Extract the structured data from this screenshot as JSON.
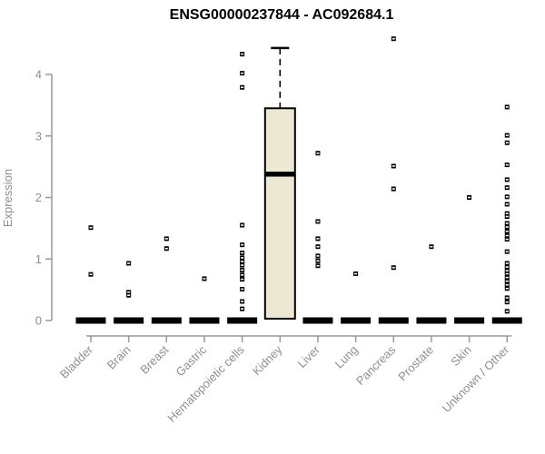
{
  "chart_data": {
    "type": "boxplot",
    "title": "ENSG00000237844 - AC092684.1",
    "ylabel": "Expression",
    "xlabel": "",
    "ylim": [
      0,
      4.7
    ],
    "yticks": [
      0,
      1,
      2,
      3,
      4
    ],
    "grid": false,
    "legend": false,
    "categories": [
      "Bladder",
      "Brain",
      "Breast",
      "Gastric",
      "Hematopoietic cells",
      "Kidney",
      "Liver",
      "Lung",
      "Pancreas",
      "Prostate",
      "Skin",
      "Unknown / Other"
    ],
    "boxes": [
      {
        "category": "Bladder",
        "median": 0,
        "q1": 0,
        "q3": 0,
        "whisker_low": 0,
        "whisker_high": 0,
        "outliers": [
          1.51,
          0.75
        ]
      },
      {
        "category": "Brain",
        "median": 0,
        "q1": 0,
        "q3": 0,
        "whisker_low": 0,
        "whisker_high": 0,
        "outliers": [
          0.93,
          0.46,
          0.41
        ]
      },
      {
        "category": "Breast",
        "median": 0,
        "q1": 0,
        "q3": 0,
        "whisker_low": 0,
        "whisker_high": 0,
        "outliers": [
          1.33,
          1.17
        ]
      },
      {
        "category": "Gastric",
        "median": 0,
        "q1": 0,
        "q3": 0,
        "whisker_low": 0,
        "whisker_high": 0,
        "outliers": [
          0.68
        ]
      },
      {
        "category": "Hematopoietic cells",
        "median": 0,
        "q1": 0,
        "q3": 0,
        "whisker_low": 0,
        "whisker_high": 0,
        "outliers": [
          4.33,
          4.02,
          3.79,
          1.55,
          1.23,
          1.1,
          1.02,
          0.96,
          0.9,
          0.82,
          0.74,
          0.67,
          0.51,
          0.31,
          0.19
        ]
      },
      {
        "category": "Kidney",
        "median": 2.38,
        "q1": 0.03,
        "q3": 3.45,
        "whisker_low": 0.03,
        "whisker_high": 4.43,
        "outliers": []
      },
      {
        "category": "Liver",
        "median": 0,
        "q1": 0,
        "q3": 0,
        "whisker_low": 0,
        "whisker_high": 0,
        "outliers": [
          2.72,
          1.61,
          1.33,
          1.2,
          1.05,
          0.97,
          0.89
        ]
      },
      {
        "category": "Lung",
        "median": 0,
        "q1": 0,
        "q3": 0,
        "whisker_low": 0,
        "whisker_high": 0,
        "outliers": [
          0.76
        ]
      },
      {
        "category": "Pancreas",
        "median": 0,
        "q1": 0,
        "q3": 0,
        "whisker_low": 0,
        "whisker_high": 0,
        "outliers": [
          4.58,
          2.51,
          2.14,
          0.86
        ]
      },
      {
        "category": "Prostate",
        "median": 0,
        "q1": 0,
        "q3": 0,
        "whisker_low": 0,
        "whisker_high": 0,
        "outliers": [
          1.2
        ]
      },
      {
        "category": "Skin",
        "median": 0,
        "q1": 0,
        "q3": 0,
        "whisker_low": 0,
        "whisker_high": 0,
        "outliers": [
          2.0
        ]
      },
      {
        "category": "Unknown / Other",
        "median": 0,
        "q1": 0,
        "q3": 0,
        "whisker_low": 0,
        "whisker_high": 0,
        "outliers": [
          3.47,
          3.01,
          2.89,
          2.53,
          2.29,
          2.16,
          2.01,
          1.89,
          1.74,
          1.69,
          1.58,
          1.52,
          1.45,
          1.38,
          1.32,
          1.12,
          0.93,
          0.87,
          0.81,
          0.76,
          0.7,
          0.64,
          0.58,
          0.52,
          0.37,
          0.3,
          0.15
        ]
      }
    ],
    "colors": {
      "box_fill": "#EDE8D1",
      "box_stroke": "#000000",
      "median_color": "#000000",
      "outlier_color": "#000000",
      "axis_color": "#999999",
      "tick_label_color": "#8f8f8f",
      "title_color": "#000000"
    }
  }
}
